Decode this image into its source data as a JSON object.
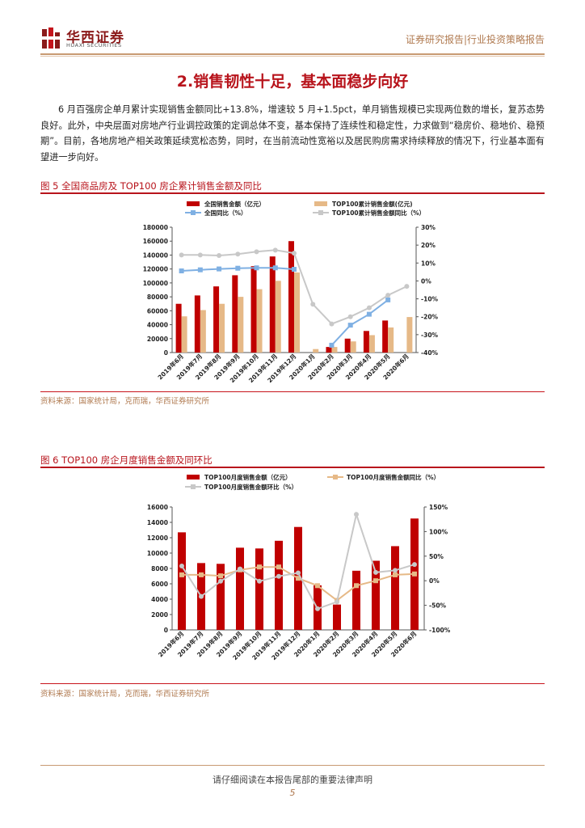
{
  "header": {
    "logo_cn": "华西证券",
    "logo_en": "HUAXI SECURITIES",
    "report_type": "证券研究报告|行业投资策略报告"
  },
  "section": {
    "title": "2.销售韧性十足，基本面稳步向好",
    "body": "6 月百强房企单月累计实现销售金额同比+13.8%，增速较 5 月+1.5pct，单月销售规模已实现两位数的增长，复苏态势良好。此外，中央层面对房地产行业调控政策的定调总体不变，基本保持了连续性和稳定性，力求做到“稳房价、稳地价、稳预期”。目前，各地房地产相关政策延续宽松态势，同时，在当前流动性宽裕以及居民购房需求持续释放的情况下，行业基本面有望进一步向好。"
  },
  "figure5": {
    "caption": "图 5   全国商品房及 TOP100 房企累计销售金额及同比",
    "source": "资料来源：国家统计局，克而瑞，华西证券研究所"
  },
  "figure6": {
    "caption": "图 6   TOP100 房企月度销售金额及同环比",
    "source": "资料来源：国家统计局，克而瑞，华西证券研究所"
  },
  "chart_data": [
    {
      "type": "bar",
      "title": "",
      "categories": [
        "2019年6月",
        "2019年7月",
        "2019年8月",
        "2019年9月",
        "2019年10月",
        "2019年11月",
        "2019年12月",
        "2020年1月",
        "2020年2月",
        "2020年3月",
        "2020年4月",
        "2020年5月",
        "2020年6月"
      ],
      "series": [
        {
          "name": "全国销售金额（亿元）",
          "type": "bar",
          "axis": "left",
          "color": "#c00000",
          "values": [
            70000,
            82000,
            95000,
            111000,
            124000,
            138000,
            160000,
            null,
            8000,
            20000,
            31000,
            46000,
            null
          ]
        },
        {
          "name": "TOP100累计销售金额(亿元)",
          "type": "bar",
          "axis": "left",
          "color": "#e6b987",
          "values": [
            52000,
            61000,
            70000,
            80000,
            91000,
            103000,
            115000,
            5000,
            8000,
            16000,
            25000,
            36000,
            51000
          ]
        },
        {
          "name": "全国同比（%）",
          "type": "line",
          "axis": "right",
          "color": "#7fb0e3",
          "values": [
            5.6,
            6.2,
            6.7,
            7.1,
            7.3,
            7.3,
            6.5,
            null,
            -35.9,
            -24.7,
            -18.6,
            -10.6,
            null
          ]
        },
        {
          "name": "TOP100累计销售金额同比（%）",
          "type": "line",
          "axis": "right",
          "color": "#c8c8c8",
          "values": [
            14.5,
            14.5,
            14.2,
            15.0,
            16.3,
            17.2,
            15.5,
            -13.0,
            -24.0,
            -20.0,
            -15.0,
            -8.0,
            -3.0
          ]
        }
      ],
      "ylim_left": [
        0,
        180000
      ],
      "yticks_left": [
        "0",
        "20000",
        "40000",
        "60000",
        "80000",
        "100000",
        "120000",
        "140000",
        "160000",
        "180000"
      ],
      "ylim_right": [
        -40,
        30
      ],
      "yticks_right": [
        "-40%",
        "-30%",
        "-20%",
        "-10%",
        "0%",
        "10%",
        "20%",
        "30%"
      ],
      "legend": "top"
    },
    {
      "type": "bar",
      "title": "",
      "categories": [
        "2019年6月",
        "2019年7月",
        "2019年8月",
        "2019年9月",
        "2019年10月",
        "2019年11月",
        "2019年12月",
        "2020年1月",
        "2020年2月",
        "2020年3月",
        "2020年4月",
        "2020年5月",
        "2020年6月"
      ],
      "series": [
        {
          "name": "TOP100月度销售金额（亿元）",
          "type": "bar",
          "axis": "left",
          "color": "#c00000",
          "values": [
            12700,
            8700,
            8600,
            10700,
            10600,
            11600,
            13400,
            5800,
            3300,
            7700,
            9000,
            10900,
            14500
          ]
        },
        {
          "name": "TOP100月度销售金额同比（%）",
          "type": "line",
          "axis": "right",
          "color": "#e6b987",
          "values": [
            12,
            12,
            10,
            22,
            28,
            28,
            5,
            -10,
            -40,
            -10,
            0,
            12,
            13.8
          ]
        },
        {
          "name": "TOP100月度销售金额环比（%）",
          "type": "line",
          "axis": "right",
          "color": "#c8c8c8",
          "values": [
            30,
            -32,
            -1,
            24,
            -1,
            9,
            16,
            -57,
            -43,
            135,
            17,
            21,
            33
          ]
        }
      ],
      "ylim_left": [
        0,
        16000
      ],
      "yticks_left": [
        "0",
        "2000",
        "4000",
        "6000",
        "8000",
        "10000",
        "12000",
        "14000",
        "16000"
      ],
      "ylim_right": [
        -100,
        150
      ],
      "yticks_right": [
        "-100%",
        "-50%",
        "0%",
        "50%",
        "100%",
        "150%"
      ],
      "legend": "top"
    }
  ]
}
